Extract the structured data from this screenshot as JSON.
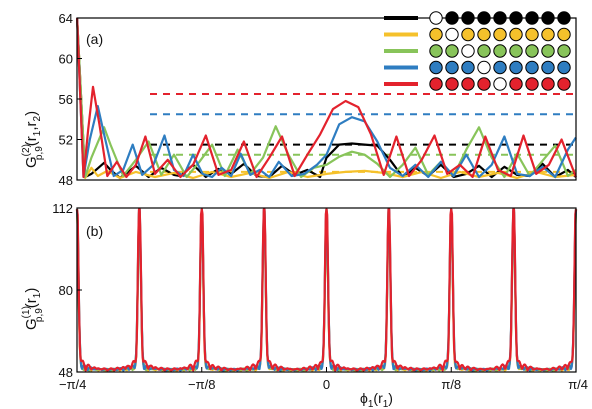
{
  "chart_data": [
    {
      "panel": "(a)",
      "type": "line",
      "ylabel": {
        "main": "G",
        "sup": "(2)",
        "sub": "p,9",
        "arg": "(r",
        "arg_sub1": "1",
        "arg_mid": ",r",
        "arg_sub2": "2",
        "arg_end": ")"
      },
      "xlim": [
        -0.785398,
        0.785398
      ],
      "ylim": [
        48,
        64
      ],
      "yticks": [
        "48",
        "52",
        "56",
        "60",
        "64"
      ],
      "ytick_values": [
        48,
        52,
        56,
        60,
        64
      ],
      "grid": false,
      "legend_position": "top-right",
      "legend": {
        "circle_count": 9,
        "rows": [
          {
            "color": "#000000",
            "empty": [
              0
            ]
          },
          {
            "color": "#f5c12b",
            "empty": [
              1
            ]
          },
          {
            "color": "#88c45a",
            "empty": [
              2
            ]
          },
          {
            "color": "#2e7dc1",
            "empty": [
              3
            ]
          },
          {
            "color": "#e3222d",
            "empty": [
              4
            ]
          }
        ]
      },
      "series": [
        {
          "color": "#000000",
          "dashed_level": 51.5,
          "x": [
            -0.785,
            -0.76,
            -0.74,
            -0.7,
            -0.68,
            -0.65,
            -0.62,
            -0.6,
            -0.56,
            -0.52,
            -0.48,
            -0.46,
            -0.42,
            -0.38,
            -0.34,
            -0.3,
            -0.26,
            -0.22,
            -0.18,
            -0.14,
            -0.1,
            -0.06,
            -0.02,
            0.0,
            0.04,
            0.08,
            0.12,
            0.16,
            0.2,
            0.24,
            0.28,
            0.32,
            0.36,
            0.4,
            0.44,
            0.48,
            0.52,
            0.56,
            0.6,
            0.64,
            0.68,
            0.72,
            0.76,
            0.785
          ],
          "y": [
            64,
            48.3,
            48.6,
            49.7,
            49.0,
            48.2,
            48.9,
            49.4,
            48.3,
            49.2,
            48.5,
            48.4,
            49.5,
            48.3,
            49.1,
            48.6,
            49.6,
            48.4,
            48.3,
            49.4,
            48.5,
            49.0,
            48.3,
            50.2,
            51.5,
            51.6,
            51.5,
            51.4,
            50.0,
            48.3,
            49.2,
            48.4,
            49.5,
            48.3,
            48.6,
            49.4,
            48.3,
            49.3,
            48.5,
            48.4,
            49.6,
            48.3,
            49.0,
            48.3
          ]
        },
        {
          "color": "#f5c12b",
          "dashed_level": 48.8,
          "x": [
            -0.785,
            -0.76,
            -0.74,
            -0.72,
            -0.69,
            -0.65,
            -0.6,
            -0.54,
            -0.48,
            -0.42,
            -0.36,
            -0.3,
            -0.24,
            -0.18,
            -0.12,
            -0.06,
            0.0,
            0.06,
            0.12,
            0.18,
            0.24,
            0.3,
            0.36,
            0.42,
            0.48,
            0.54,
            0.6,
            0.66,
            0.72,
            0.785
          ],
          "y": [
            64,
            48.2,
            49.2,
            48.4,
            48.9,
            48.2,
            48.8,
            48.3,
            48.7,
            48.2,
            48.8,
            48.3,
            48.7,
            48.2,
            48.8,
            48.3,
            48.6,
            48.8,
            48.9,
            48.7,
            48.3,
            48.8,
            48.2,
            48.8,
            48.3,
            48.7,
            48.2,
            48.8,
            48.3,
            48.5
          ]
        },
        {
          "color": "#88c45a",
          "dashed_level": 50.5,
          "x": [
            -0.785,
            -0.76,
            -0.74,
            -0.7,
            -0.68,
            -0.64,
            -0.6,
            -0.56,
            -0.52,
            -0.48,
            -0.44,
            -0.4,
            -0.36,
            -0.32,
            -0.28,
            -0.24,
            -0.2,
            -0.16,
            -0.12,
            -0.08,
            -0.04,
            0.0,
            0.04,
            0.08,
            0.12,
            0.16,
            0.2,
            0.24,
            0.28,
            0.32,
            0.36,
            0.4,
            0.44,
            0.48,
            0.52,
            0.56,
            0.6,
            0.64,
            0.68,
            0.72,
            0.76,
            0.785
          ],
          "y": [
            64,
            48.3,
            50.2,
            53.2,
            51.5,
            48.4,
            50.0,
            51.8,
            48.5,
            50.5,
            48.3,
            49.8,
            51.5,
            48.4,
            51.0,
            48.6,
            50.2,
            53.3,
            50.5,
            48.3,
            49.2,
            49.5,
            50.3,
            50.8,
            50.5,
            49.6,
            48.3,
            49.5,
            51.2,
            48.5,
            49.8,
            48.4,
            51.0,
            53.2,
            50.2,
            48.3,
            50.6,
            48.4,
            49.9,
            51.4,
            48.4,
            49.0
          ]
        },
        {
          "color": "#2e7dc1",
          "dashed_level": 54.5,
          "x": [
            -0.785,
            -0.765,
            -0.745,
            -0.72,
            -0.7,
            -0.67,
            -0.64,
            -0.61,
            -0.58,
            -0.545,
            -0.51,
            -0.48,
            -0.45,
            -0.42,
            -0.39,
            -0.36,
            -0.33,
            -0.3,
            -0.27,
            -0.24,
            -0.21,
            -0.18,
            -0.15,
            -0.11,
            -0.07,
            -0.03,
            0.0,
            0.04,
            0.08,
            0.12,
            0.16,
            0.2,
            0.24,
            0.28,
            0.32,
            0.36,
            0.4,
            0.44,
            0.48,
            0.52,
            0.56,
            0.6,
            0.64,
            0.68,
            0.72,
            0.76,
            0.785
          ],
          "y": [
            64,
            48.3,
            52.0,
            55.3,
            52.5,
            48.4,
            49.0,
            51.5,
            48.5,
            49.5,
            52.4,
            49.0,
            48.4,
            50.5,
            48.6,
            48.3,
            49.2,
            48.4,
            50.6,
            48.5,
            49.0,
            48.3,
            49.8,
            48.4,
            48.6,
            49.5,
            50.5,
            53.5,
            54.2,
            53.8,
            51.8,
            49.2,
            48.4,
            49.5,
            48.3,
            49.8,
            48.4,
            50.5,
            48.3,
            49.5,
            52.3,
            48.6,
            48.4,
            49.3,
            48.3,
            51.0,
            52.2
          ]
        },
        {
          "color": "#e3222d",
          "dashed_level": 56.5,
          "x": [
            -0.785,
            -0.765,
            -0.75,
            -0.735,
            -0.715,
            -0.69,
            -0.66,
            -0.63,
            -0.6,
            -0.57,
            -0.54,
            -0.5,
            -0.46,
            -0.42,
            -0.38,
            -0.34,
            -0.3,
            -0.26,
            -0.22,
            -0.18,
            -0.14,
            -0.1,
            -0.06,
            -0.02,
            0.02,
            0.06,
            0.1,
            0.14,
            0.18,
            0.22,
            0.26,
            0.3,
            0.34,
            0.38,
            0.42,
            0.46,
            0.5,
            0.54,
            0.58,
            0.62,
            0.66,
            0.7,
            0.74,
            0.785
          ],
          "y": [
            64,
            48.3,
            53.0,
            57.2,
            53.5,
            48.4,
            49.8,
            48.3,
            49.5,
            52.3,
            48.6,
            50.0,
            48.3,
            49.5,
            52.4,
            48.5,
            49.0,
            51.8,
            48.3,
            50.2,
            52.3,
            48.4,
            50.5,
            52.5,
            55.0,
            55.8,
            55.2,
            52.5,
            48.5,
            52.3,
            48.4,
            50.0,
            52.4,
            48.6,
            49.5,
            48.3,
            52.3,
            49.0,
            48.4,
            52.4,
            48.6,
            49.5,
            52.0,
            48.3
          ]
        }
      ]
    },
    {
      "panel": "(b)",
      "type": "line",
      "ylabel": {
        "main": "G",
        "sup": "(1)",
        "sub": "p,9",
        "arg": "(r",
        "arg_sub1": "1",
        "arg_end": ")"
      },
      "xlabel": {
        "main": "ϕ",
        "sub": "1",
        "arg": "(r",
        "arg_sub": "1",
        "arg_end": ")"
      },
      "xlim": [
        -0.785398,
        0.785398
      ],
      "ylim": [
        48,
        112
      ],
      "yticks": [
        "48",
        "80",
        "112"
      ],
      "ytick_values": [
        48,
        80,
        112
      ],
      "xticks": [
        "−π/4",
        "−π/8",
        "0",
        "π/8",
        "π/4"
      ],
      "xtick_values": [
        -0.785398,
        -0.392699,
        0,
        0.392699,
        0.785398
      ],
      "grid": false,
      "peaks": {
        "centers": [
          -0.7854,
          -0.589,
          -0.3927,
          -0.1963,
          0.0,
          0.1963,
          0.3927,
          0.589,
          0.7854
        ],
        "height": 111,
        "baseline": 48.5
      },
      "series": [
        {
          "color": "#f5c12b",
          "ripple": 1.0
        },
        {
          "color": "#88c45a",
          "ripple": 2.5
        },
        {
          "color": "#2e7dc1",
          "ripple": 3.5
        },
        {
          "color": "#e3222d",
          "ripple": 6.0
        }
      ]
    }
  ]
}
